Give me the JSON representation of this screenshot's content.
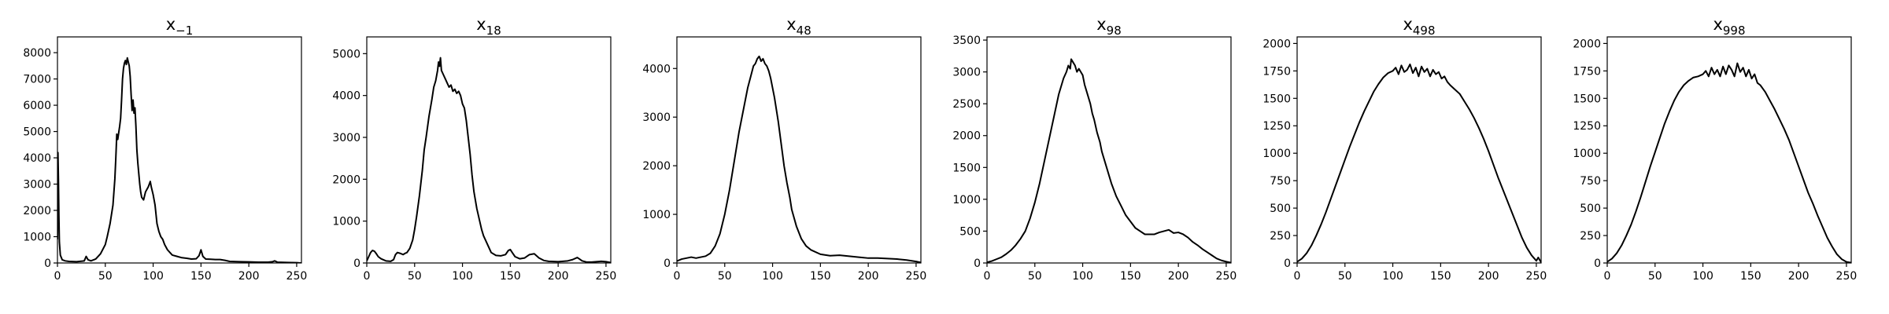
{
  "chart_data": [
    {
      "type": "line",
      "title": "x",
      "title_subscript": "−1",
      "xlabel": "",
      "ylabel": "",
      "xlim": [
        0,
        255
      ],
      "ylim": [
        0,
        8600
      ],
      "xticks": [
        0,
        50,
        100,
        150,
        200,
        250
      ],
      "yticks": [
        0,
        1000,
        2000,
        3000,
        4000,
        5000,
        6000,
        7000,
        8000
      ],
      "series": [
        {
          "color": "#000000",
          "x": [
            0,
            0.5,
            1,
            1.5,
            2,
            3,
            5,
            8,
            12,
            20,
            28,
            30,
            32,
            35,
            40,
            45,
            50,
            52,
            55,
            58,
            60,
            61,
            62,
            63,
            64,
            65,
            66,
            67,
            68,
            69,
            70,
            71,
            72,
            73,
            74,
            75,
            76,
            77,
            78,
            79,
            80,
            81,
            82,
            83,
            84,
            85,
            86,
            87,
            88,
            90,
            92,
            95,
            97,
            98,
            100,
            102,
            104,
            106,
            108,
            110,
            112,
            115,
            120,
            125,
            130,
            135,
            140,
            145,
            148,
            150,
            152,
            155,
            160,
            165,
            170,
            175,
            180,
            190,
            200,
            210,
            220,
            225,
            227,
            230,
            240,
            250,
            255
          ],
          "y": [
            900,
            4200,
            3200,
            1800,
            800,
            300,
            120,
            80,
            60,
            50,
            80,
            250,
            120,
            80,
            150,
            350,
            700,
            1000,
            1500,
            2200,
            3200,
            4000,
            4900,
            4700,
            4950,
            5200,
            5500,
            6200,
            7000,
            7400,
            7600,
            7700,
            7550,
            7800,
            7650,
            7500,
            7100,
            6400,
            5800,
            6200,
            5700,
            5900,
            5200,
            4300,
            3800,
            3400,
            3000,
            2700,
            2500,
            2400,
            2700,
            2900,
            3100,
            2900,
            2600,
            2200,
            1500,
            1200,
            1000,
            900,
            700,
            500,
            300,
            250,
            200,
            180,
            150,
            160,
            280,
            500,
            250,
            150,
            140,
            130,
            130,
            100,
            60,
            50,
            40,
            30,
            30,
            50,
            80,
            30,
            20,
            10,
            0
          ]
        }
      ]
    },
    {
      "type": "line",
      "title": "x",
      "title_subscript": "18",
      "xlabel": "",
      "ylabel": "",
      "xlim": [
        0,
        255
      ],
      "ylim": [
        0,
        5400
      ],
      "xticks": [
        0,
        50,
        100,
        150,
        200,
        250
      ],
      "yticks": [
        0,
        1000,
        2000,
        3000,
        4000,
        5000
      ],
      "series": [
        {
          "color": "#000000",
          "x": [
            0,
            2,
            4,
            6,
            8,
            10,
            12,
            15,
            20,
            25,
            28,
            30,
            32,
            35,
            38,
            40,
            42,
            45,
            48,
            50,
            52,
            55,
            58,
            60,
            62,
            65,
            68,
            70,
            72,
            74,
            75,
            76,
            77,
            78,
            80,
            82,
            84,
            86,
            88,
            90,
            92,
            94,
            96,
            98,
            100,
            102,
            104,
            106,
            108,
            110,
            112,
            115,
            118,
            120,
            122,
            125,
            128,
            130,
            135,
            140,
            145,
            148,
            150,
            152,
            155,
            160,
            165,
            170,
            175,
            180,
            185,
            190,
            200,
            210,
            215,
            220,
            222,
            225,
            230,
            235,
            240,
            245,
            250,
            255
          ],
          "y": [
            50,
            150,
            250,
            300,
            280,
            220,
            150,
            100,
            50,
            40,
            80,
            200,
            250,
            230,
            200,
            230,
            250,
            350,
            550,
            800,
            1100,
            1600,
            2200,
            2700,
            3000,
            3500,
            3900,
            4200,
            4350,
            4600,
            4800,
            4700,
            4900,
            4600,
            4500,
            4400,
            4300,
            4200,
            4250,
            4100,
            4150,
            4050,
            4100,
            4000,
            3800,
            3700,
            3400,
            3000,
            2600,
            2100,
            1700,
            1300,
            1000,
            800,
            650,
            500,
            350,
            250,
            180,
            170,
            200,
            300,
            320,
            250,
            150,
            100,
            120,
            200,
            220,
            120,
            60,
            40,
            30,
            50,
            80,
            130,
            100,
            50,
            20,
            20,
            30,
            40,
            30,
            10
          ]
        }
      ]
    },
    {
      "type": "line",
      "title": "x",
      "title_subscript": "48",
      "xlabel": "",
      "ylabel": "",
      "xlim": [
        0,
        255
      ],
      "ylim": [
        0,
        4650
      ],
      "xticks": [
        0,
        50,
        100,
        150,
        200,
        250
      ],
      "yticks": [
        0,
        1000,
        2000,
        3000,
        4000
      ],
      "series": [
        {
          "color": "#000000",
          "x": [
            0,
            5,
            10,
            15,
            20,
            25,
            30,
            35,
            40,
            45,
            50,
            55,
            60,
            65,
            70,
            72,
            74,
            76,
            78,
            80,
            82,
            84,
            86,
            88,
            90,
            92,
            94,
            96,
            98,
            100,
            102,
            104,
            106,
            108,
            110,
            112,
            115,
            118,
            120,
            125,
            130,
            135,
            140,
            150,
            160,
            170,
            180,
            190,
            200,
            210,
            220,
            230,
            240,
            250,
            255
          ],
          "y": [
            40,
            80,
            100,
            120,
            100,
            120,
            140,
            200,
            350,
            600,
            1000,
            1500,
            2100,
            2700,
            3200,
            3400,
            3600,
            3750,
            3900,
            4050,
            4100,
            4200,
            4250,
            4150,
            4200,
            4100,
            4050,
            3950,
            3800,
            3600,
            3400,
            3150,
            2900,
            2600,
            2300,
            2000,
            1650,
            1350,
            1100,
            750,
            500,
            350,
            270,
            180,
            150,
            160,
            140,
            120,
            100,
            100,
            90,
            80,
            60,
            30,
            10
          ]
        }
      ]
    },
    {
      "type": "line",
      "title": "x",
      "title_subscript": "98",
      "xlabel": "",
      "ylabel": "",
      "xlim": [
        0,
        255
      ],
      "ylim": [
        0,
        3550
      ],
      "xticks": [
        0,
        50,
        100,
        150,
        200,
        250
      ],
      "yticks": [
        0,
        500,
        1000,
        1500,
        2000,
        2500,
        3000,
        3500
      ],
      "series": [
        {
          "color": "#000000",
          "x": [
            0,
            5,
            10,
            15,
            20,
            25,
            30,
            35,
            40,
            45,
            50,
            55,
            60,
            65,
            70,
            75,
            78,
            80,
            83,
            85,
            87,
            88,
            90,
            92,
            94,
            96,
            98,
            100,
            102,
            104,
            106,
            108,
            110,
            112,
            115,
            118,
            120,
            125,
            130,
            135,
            140,
            145,
            150,
            155,
            160,
            165,
            170,
            175,
            180,
            185,
            190,
            195,
            200,
            205,
            210,
            215,
            220,
            225,
            230,
            235,
            240,
            245,
            250,
            255
          ],
          "y": [
            10,
            30,
            60,
            90,
            140,
            200,
            280,
            380,
            500,
            700,
            950,
            1250,
            1600,
            1950,
            2300,
            2650,
            2800,
            2900,
            3000,
            3100,
            3050,
            3200,
            3150,
            3100,
            3000,
            3050,
            3000,
            2950,
            2800,
            2700,
            2600,
            2500,
            2350,
            2250,
            2050,
            1900,
            1750,
            1500,
            1250,
            1050,
            900,
            750,
            650,
            550,
            500,
            450,
            450,
            450,
            480,
            500,
            520,
            470,
            480,
            450,
            400,
            330,
            280,
            220,
            170,
            120,
            70,
            40,
            20,
            5
          ]
        }
      ]
    },
    {
      "type": "line",
      "title": "x",
      "title_subscript": "498",
      "xlabel": "",
      "ylabel": "",
      "xlim": [
        0,
        255
      ],
      "ylim": [
        0,
        2060
      ],
      "xticks": [
        0,
        50,
        100,
        150,
        200,
        250
      ],
      "yticks": [
        0,
        250,
        500,
        750,
        1000,
        1250,
        1500,
        1750,
        2000
      ],
      "series": [
        {
          "color": "#000000",
          "x": [
            0,
            5,
            10,
            15,
            20,
            25,
            30,
            35,
            40,
            45,
            50,
            55,
            60,
            65,
            70,
            75,
            80,
            85,
            90,
            95,
            100,
            103,
            106,
            109,
            112,
            115,
            118,
            121,
            124,
            127,
            130,
            133,
            136,
            139,
            142,
            145,
            148,
            151,
            154,
            157,
            160,
            165,
            170,
            175,
            180,
            185,
            190,
            195,
            200,
            205,
            210,
            215,
            220,
            225,
            230,
            235,
            240,
            245,
            250,
            252,
            255
          ],
          "y": [
            10,
            40,
            90,
            160,
            250,
            350,
            460,
            580,
            700,
            820,
            940,
            1060,
            1170,
            1280,
            1380,
            1470,
            1560,
            1630,
            1690,
            1730,
            1750,
            1780,
            1720,
            1800,
            1740,
            1760,
            1810,
            1730,
            1780,
            1700,
            1790,
            1740,
            1770,
            1700,
            1760,
            1720,
            1740,
            1680,
            1700,
            1650,
            1620,
            1580,
            1540,
            1470,
            1400,
            1320,
            1230,
            1130,
            1020,
            900,
            780,
            670,
            560,
            450,
            340,
            230,
            140,
            70,
            20,
            50,
            5
          ]
        }
      ]
    },
    {
      "type": "line",
      "title": "x",
      "title_subscript": "998",
      "xlabel": "",
      "ylabel": "",
      "xlim": [
        0,
        255
      ],
      "ylim": [
        0,
        2060
      ],
      "xticks": [
        0,
        50,
        100,
        150,
        200,
        250
      ],
      "yticks": [
        0,
        250,
        500,
        750,
        1000,
        1250,
        1500,
        1750,
        2000
      ],
      "series": [
        {
          "color": "#000000",
          "x": [
            0,
            5,
            10,
            15,
            20,
            25,
            30,
            35,
            40,
            45,
            50,
            55,
            60,
            65,
            70,
            75,
            80,
            85,
            90,
            95,
            100,
            103,
            106,
            109,
            112,
            115,
            118,
            121,
            124,
            127,
            130,
            133,
            136,
            139,
            142,
            145,
            148,
            151,
            154,
            157,
            160,
            165,
            170,
            175,
            180,
            185,
            190,
            195,
            200,
            205,
            210,
            215,
            220,
            225,
            230,
            235,
            240,
            245,
            250,
            255
          ],
          "y": [
            10,
            40,
            90,
            160,
            250,
            350,
            470,
            600,
            740,
            880,
            1010,
            1140,
            1270,
            1380,
            1480,
            1560,
            1620,
            1660,
            1690,
            1700,
            1720,
            1750,
            1700,
            1780,
            1720,
            1760,
            1700,
            1790,
            1720,
            1800,
            1760,
            1700,
            1820,
            1740,
            1780,
            1700,
            1760,
            1680,
            1720,
            1640,
            1620,
            1560,
            1480,
            1400,
            1310,
            1220,
            1120,
            1000,
            880,
            760,
            640,
            540,
            430,
            330,
            230,
            150,
            80,
            35,
            10,
            3
          ]
        }
      ]
    }
  ]
}
